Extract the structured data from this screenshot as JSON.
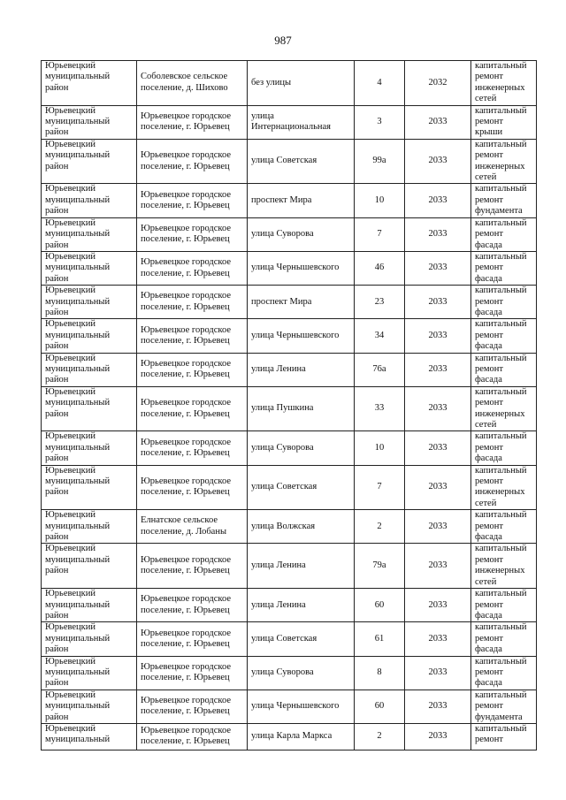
{
  "page_number": "987",
  "rows": [
    [
      "Юрьевецкий муниципальный район",
      "Соболевское сельское поселение, д. Шихово",
      "без улицы",
      "4",
      "2032",
      "капитальный ремонт инженерных сетей"
    ],
    [
      "Юрьевецкий муниципальный район",
      "Юрьевецкое городское поселение, г. Юрьевец",
      "улица Интернациональная",
      "3",
      "2033",
      "капитальный ремонт крыши"
    ],
    [
      "Юрьевецкий муниципальный район",
      "Юрьевецкое городское поселение, г. Юрьевец",
      "улица Советская",
      "99а",
      "2033",
      "капитальный ремонт инженерных сетей"
    ],
    [
      "Юрьевецкий муниципальный район",
      "Юрьевецкое городское поселение, г. Юрьевец",
      "проспект Мира",
      "10",
      "2033",
      "капитальный ремонт фундамента"
    ],
    [
      "Юрьевецкий муниципальный район",
      "Юрьевецкое городское поселение, г. Юрьевец",
      "улица Суворова",
      "7",
      "2033",
      "капитальный ремонт фасада"
    ],
    [
      "Юрьевецкий муниципальный район",
      "Юрьевецкое городское поселение, г. Юрьевец",
      "улица Чернышевского",
      "46",
      "2033",
      "капитальный ремонт фасада"
    ],
    [
      "Юрьевецкий муниципальный район",
      "Юрьевецкое городское поселение, г. Юрьевец",
      "проспект Мира",
      "23",
      "2033",
      "капитальный ремонт фасада"
    ],
    [
      "Юрьевецкий муниципальный район",
      "Юрьевецкое городское поселение, г. Юрьевец",
      "улица Чернышевского",
      "34",
      "2033",
      "капитальный ремонт фасада"
    ],
    [
      "Юрьевецкий муниципальный район",
      "Юрьевецкое городское поселение, г. Юрьевец",
      "улица Ленина",
      "76а",
      "2033",
      "капитальный ремонт фасада"
    ],
    [
      "Юрьевецкий муниципальный район",
      "Юрьевецкое городское поселение, г. Юрьевец",
      "улица Пушкина",
      "33",
      "2033",
      "капитальный ремонт инженерных сетей"
    ],
    [
      "Юрьевецкий муниципальный район",
      "Юрьевецкое городское поселение, г. Юрьевец",
      "улица Суворова",
      "10",
      "2033",
      "капитальный ремонт фасада"
    ],
    [
      "Юрьевецкий муниципальный район",
      "Юрьевецкое городское поселение, г. Юрьевец",
      "улица Советская",
      "7",
      "2033",
      "капитальный ремонт инженерных сетей"
    ],
    [
      "Юрьевецкий муниципальный район",
      "Елнатское сельское поселение, д. Лобаны",
      "улица Волжская",
      "2",
      "2033",
      "капитальный ремонт фасада"
    ],
    [
      "Юрьевецкий муниципальный район",
      "Юрьевецкое городское поселение, г. Юрьевец",
      "улица Ленина",
      "79а",
      "2033",
      "капитальный ремонт инженерных сетей"
    ],
    [
      "Юрьевецкий муниципальный район",
      "Юрьевецкое городское поселение, г. Юрьевец",
      "улица Ленина",
      "60",
      "2033",
      "капитальный ремонт фасада"
    ],
    [
      "Юрьевецкий муниципальный район",
      "Юрьевецкое городское поселение, г. Юрьевец",
      "улица Советская",
      "61",
      "2033",
      "капитальный ремонт фасада"
    ],
    [
      "Юрьевецкий муниципальный район",
      "Юрьевецкое городское поселение, г. Юрьевец",
      "улица Суворова",
      "8",
      "2033",
      "капитальный ремонт фасада"
    ],
    [
      "Юрьевецкий муниципальный район",
      "Юрьевецкое городское поселение, г. Юрьевец",
      "улица Чернышевского",
      "60",
      "2033",
      "капитальный ремонт фундамента"
    ],
    [
      "Юрьевецкий муниципальный",
      "Юрьевецкое городское поселение, г. Юрьевец",
      "улица Карла Маркса",
      "2",
      "2033",
      "капитальный ремонт"
    ]
  ]
}
